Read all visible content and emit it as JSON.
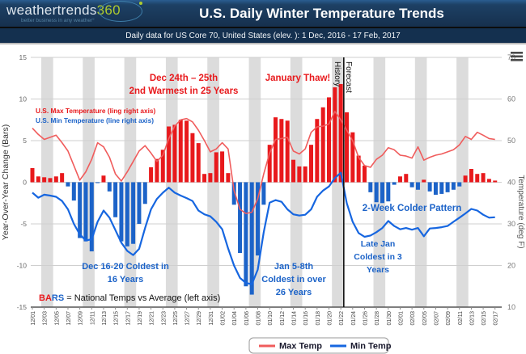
{
  "header": {
    "logo_text": "weathertrends",
    "logo_360": "360",
    "tagline": "better business in any weather°",
    "title": "U.S. Daily Winter Temperature Trends"
  },
  "subheader": {
    "text": "Daily data for US Core 70, United States (elev. ): 1 Dec, 2016 - 17 Feb, 2017"
  },
  "chart_data": {
    "type": "bar",
    "title": "U.S. Daily Winter Temperature Trends",
    "categories": [
      "12/01",
      "12/02",
      "12/03",
      "12/04",
      "12/05",
      "12/06",
      "12/07",
      "12/08",
      "12/09",
      "12/10",
      "12/11",
      "12/12",
      "12/13",
      "12/14",
      "12/15",
      "12/16",
      "12/17",
      "12/18",
      "12/19",
      "12/20",
      "12/21",
      "12/22",
      "12/23",
      "12/24",
      "12/25",
      "12/26",
      "12/27",
      "12/28",
      "12/29",
      "12/30",
      "12/31",
      "01/01",
      "01/02",
      "01/03",
      "01/04",
      "01/05",
      "01/06",
      "01/07",
      "01/08",
      "01/09",
      "01/10",
      "01/11",
      "01/12",
      "01/13",
      "01/14",
      "01/15",
      "01/16",
      "01/17",
      "01/18",
      "01/19",
      "01/20",
      "01/21",
      "01/22",
      "01/23",
      "01/24",
      "01/25",
      "01/26",
      "01/27",
      "01/28",
      "01/29",
      "01/30",
      "01/31",
      "02/01",
      "02/02",
      "02/03",
      "02/04",
      "02/05",
      "02/06",
      "02/07",
      "02/08",
      "02/09",
      "02/10",
      "02/11",
      "02/12",
      "02/13",
      "02/14",
      "02/15",
      "02/16",
      "02/17"
    ],
    "series": [
      {
        "name": "Year-over-Year Change",
        "type": "bar",
        "axis": "left",
        "values": [
          1.7,
          0.7,
          0.6,
          0.5,
          0.7,
          1.1,
          -0.5,
          -2.2,
          -6.7,
          -7.1,
          -8.3,
          -0.1,
          0.8,
          -1.1,
          -4.2,
          -7.1,
          -7.7,
          -7.4,
          -5.0,
          -2.6,
          1.8,
          2.8,
          3.9,
          6.7,
          6.9,
          7.5,
          7.4,
          5.9,
          4.7,
          1.0,
          1.1,
          3.6,
          3.7,
          1.1,
          -2.7,
          -8.5,
          -12.5,
          -13.5,
          -8.8,
          -2.7,
          4.5,
          7.8,
          7.6,
          7.4,
          2.7,
          1.9,
          1.9,
          4.5,
          7.6,
          9.0,
          10.2,
          11.4,
          11.8,
          8.4,
          6.0,
          3.2,
          2.0,
          -1.2,
          -2.4,
          -2.5,
          -2.3,
          -0.3,
          0.7,
          1.0,
          -0.6,
          -0.9,
          0.3,
          -1.1,
          -1.5,
          -1.4,
          -1.2,
          -0.9,
          -0.5,
          0.8,
          1.6,
          1.0,
          1.1,
          0.4,
          0.2
        ]
      },
      {
        "name": "Max Temp",
        "type": "line",
        "axis": "right",
        "values": [
          53.0,
          51.5,
          50.3,
          50.8,
          51.3,
          49.5,
          47.5,
          44.0,
          40.5,
          42.5,
          45.5,
          49.5,
          48.5,
          46.0,
          42.0,
          40.3,
          42.5,
          45.0,
          47.5,
          48.8,
          47.0,
          45.0,
          46.5,
          50.5,
          53.5,
          55.0,
          55.3,
          54.5,
          52.5,
          50.0,
          47.3,
          48.0,
          49.5,
          48.0,
          38.0,
          33.5,
          32.5,
          32.8,
          36.0,
          42.0,
          47.0,
          50.3,
          50.5,
          50.8,
          47.5,
          46.8,
          48.0,
          52.0,
          53.3,
          53.5,
          54.0,
          57.0,
          55.0,
          52.5,
          50.0,
          46.0,
          44.0,
          43.6,
          45.5,
          46.5,
          48.3,
          47.8,
          46.5,
          46.3,
          45.8,
          48.5,
          45.3,
          46.0,
          46.5,
          46.8,
          47.3,
          47.8,
          49.0,
          51.0,
          50.3,
          52.0,
          51.3,
          50.5,
          50.3
        ]
      },
      {
        "name": "Min Temp",
        "type": "line",
        "axis": "right",
        "values": [
          37.5,
          36.3,
          37.0,
          36.8,
          36.5,
          35.5,
          33.5,
          30.0,
          27.5,
          26.0,
          26.3,
          30.5,
          33.2,
          31.5,
          28.5,
          25.5,
          23.5,
          22.5,
          24.0,
          29.0,
          33.5,
          36.0,
          37.5,
          38.7,
          37.5,
          36.8,
          36.2,
          35.5,
          33.2,
          32.3,
          31.8,
          30.5,
          28.7,
          24.1,
          20.0,
          17.0,
          15.8,
          15.5,
          19.0,
          28.0,
          35.1,
          35.7,
          35.3,
          33.5,
          32.3,
          32.0,
          32.2,
          33.5,
          36.5,
          38.0,
          39.0,
          41.0,
          42.3,
          35.0,
          30.5,
          27.8,
          26.9,
          27.2,
          28.0,
          29.0,
          30.7,
          29.5,
          28.7,
          29.0,
          28.6,
          29.0,
          27.0,
          28.9,
          29.0,
          29.2,
          29.5,
          30.5,
          31.5,
          32.5,
          33.6,
          33.2,
          32.2,
          31.5,
          31.6
        ]
      }
    ],
    "left_axis": {
      "label": "Year-Over-Year Change (Bars)",
      "ticks": [
        15,
        10,
        5,
        0,
        -5,
        -10,
        -15
      ],
      "range": [
        -15,
        15
      ]
    },
    "right_axis": {
      "label": "Temperature (deg F)",
      "ticks": [
        70,
        60,
        50,
        40,
        30,
        20,
        10
      ],
      "range": [
        10,
        70
      ]
    },
    "weekend_band_starts": [
      "12/03",
      "12/10",
      "12/17",
      "12/24",
      "12/31",
      "01/07",
      "01/14",
      "01/21",
      "01/28",
      "02/04",
      "02/11"
    ],
    "divider": {
      "after_date": "01/22",
      "left_label": "History",
      "right_label": "Forecast"
    },
    "legend": {
      "position": "bottom",
      "items": [
        {
          "label": "Max Temp",
          "color": "#f05c5c"
        },
        {
          "label": "Min Temp",
          "color": "#1666e0"
        }
      ]
    },
    "annotations": {
      "max_note": "U.S. Max Temperature (ling right axis)",
      "min_note": "U.S. Min Temperature  (line right axis)",
      "dec_warm": [
        "Dec 24th – 25th",
        "2nd Warmest in 25 Years"
      ],
      "jan_thaw": "January Thaw!",
      "dec_cold": [
        "Dec 16-20 Coldest in",
        "16 Years"
      ],
      "jan_cold": [
        "Jan 5-8th",
        "Coldest in over",
        "26 Years"
      ],
      "two_week": "2-Week Colder Pattern",
      "late_jan": [
        "Late Jan",
        "Coldest in 3",
        "Years"
      ],
      "bars_note_parts": [
        "BA",
        "RS",
        " = National Temps vs Average (left axis)"
      ]
    },
    "colors": {
      "bar_positive": "#e8191c",
      "bar_negative": "#1c63c8",
      "max_line": "#f05c5c",
      "min_line": "#1666e0",
      "grid": "#cfcfcf",
      "weekend_band": "#dcdcdc",
      "annotation_red": "#e8191c",
      "annotation_blue": "#1c63c8",
      "divider_line": "#111111"
    },
    "grid": true
  }
}
